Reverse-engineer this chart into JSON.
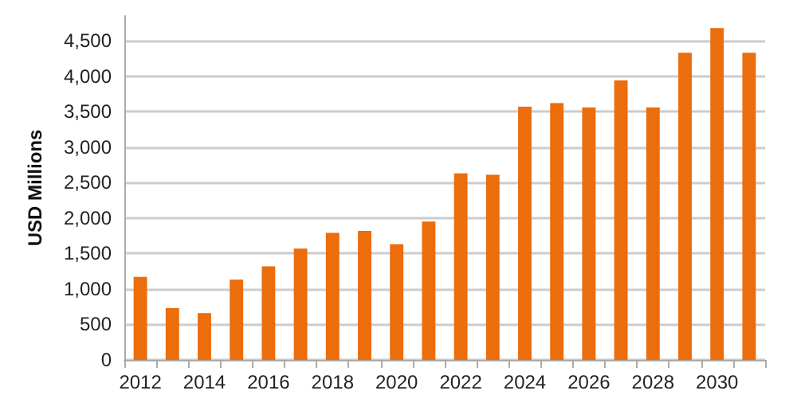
{
  "chart_data": {
    "type": "bar",
    "ylabel": "USD Millions",
    "categories": [
      "2012",
      null,
      "2014",
      null,
      "2016",
      null,
      "2018",
      null,
      "2020",
      null,
      "2022",
      null,
      "2024",
      null,
      "2026",
      null,
      "2028",
      null,
      "2030",
      null
    ],
    "values": [
      1170,
      730,
      660,
      1130,
      1320,
      1570,
      1790,
      1820,
      1630,
      1950,
      2630,
      2610,
      3570,
      3620,
      3560,
      3940,
      3560,
      4330,
      4680,
      4330
    ],
    "color": "#eb6d0c",
    "ylim": [
      0,
      4850
    ],
    "yticks": [
      0,
      500,
      {
        "value": 1000,
        "label": "1,000"
      },
      {
        "value": 1500,
        "label": "1,500"
      },
      {
        "value": 2000,
        "label": "2,000"
      },
      {
        "value": 2500,
        "label": "2,500"
      },
      {
        "value": 3000,
        "label": "3,000"
      },
      {
        "value": 3500,
        "label": "3,500"
      },
      {
        "value": 4000,
        "label": "4,000"
      },
      {
        "value": 4500,
        "label": "4,500"
      }
    ],
    "grid": "y"
  }
}
